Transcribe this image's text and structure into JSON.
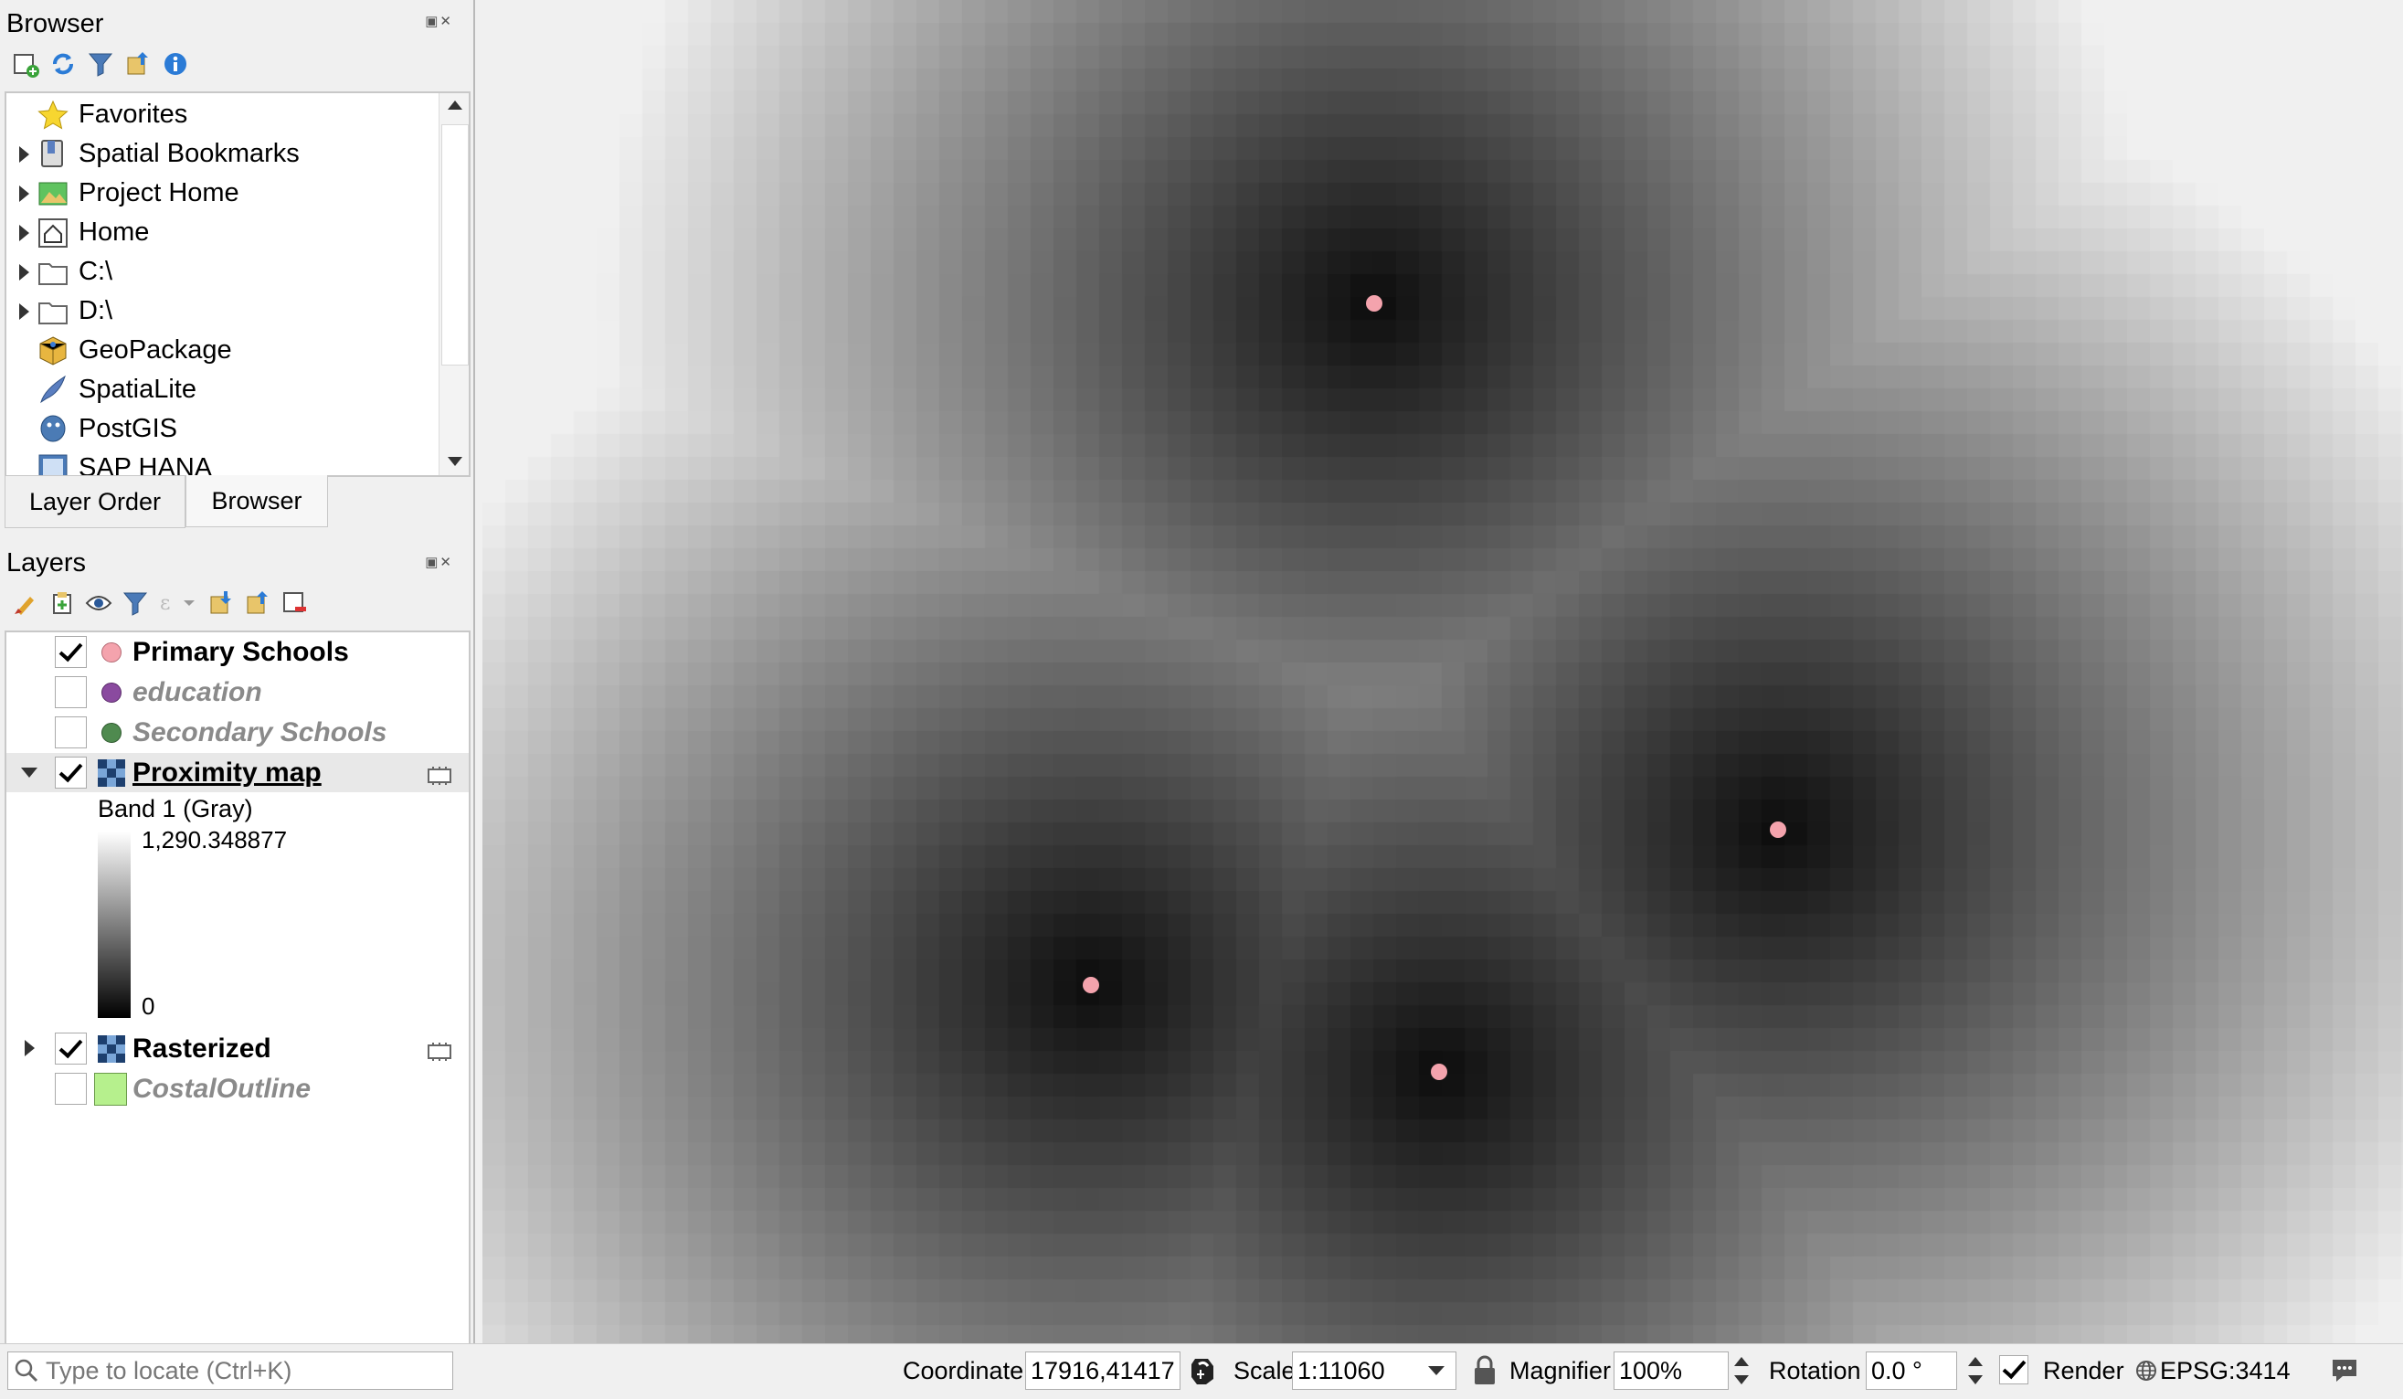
{
  "browser_panel": {
    "title": "Browser",
    "items": [
      {
        "label": "Favorites",
        "icon": "star-icon",
        "expandable": false
      },
      {
        "label": "Spatial Bookmarks",
        "icon": "bookmark-icon",
        "expandable": true
      },
      {
        "label": "Project Home",
        "icon": "project-home-icon",
        "expandable": true
      },
      {
        "label": "Home",
        "icon": "home-icon",
        "expandable": true
      },
      {
        "label": "C:\\",
        "icon": "folder-icon",
        "expandable": true
      },
      {
        "label": "D:\\",
        "icon": "folder-icon",
        "expandable": true
      },
      {
        "label": "GeoPackage",
        "icon": "geopackage-icon",
        "expandable": false
      },
      {
        "label": "SpatiaLite",
        "icon": "spatialite-icon",
        "expandable": false
      },
      {
        "label": "PostGIS",
        "icon": "postgis-icon",
        "expandable": false
      },
      {
        "label": "SAP HANA",
        "icon": "sap-hana-icon",
        "expandable": false
      }
    ]
  },
  "tabs": [
    {
      "label": "Layer Order",
      "active": false
    },
    {
      "label": "Browser",
      "active": true
    }
  ],
  "layers_panel": {
    "title": "Layers",
    "layers": [
      {
        "name": "Primary Schools",
        "checked": true,
        "visible_style": "bold",
        "symbol_color": "#f4a3ad",
        "type": "point"
      },
      {
        "name": "education",
        "checked": false,
        "visible_style": "italic-gray",
        "symbol_color": "#8a4a9f",
        "type": "point"
      },
      {
        "name": "Secondary Schools",
        "checked": false,
        "visible_style": "italic-gray",
        "symbol_color": "#4f8a4f",
        "type": "point"
      },
      {
        "name": "Proximity map",
        "checked": true,
        "visible_style": "bold-underline",
        "type": "raster",
        "expanded": true
      },
      {
        "name": "Rasterized",
        "checked": true,
        "visible_style": "bold",
        "type": "raster",
        "expanded": false
      },
      {
        "name": "CostalOutline",
        "checked": false,
        "visible_style": "italic-gray",
        "symbol_color": "#b6f08d",
        "type": "polygon"
      }
    ],
    "legend": {
      "band": "Band 1 (Gray)",
      "max": "1,290.348877",
      "min": "0"
    }
  },
  "status_bar": {
    "locate_placeholder": "Type to locate (Ctrl+K)",
    "coordinate_label": "Coordinate",
    "coordinate_value": "17916,41417",
    "scale_label": "Scale",
    "scale_value": "1:11060",
    "magnifier_label": "Magnifier",
    "magnifier_value": "100%",
    "rotation_label": "Rotation",
    "rotation_value": "0.0 °",
    "render_label": "Render",
    "render_checked": true,
    "crs": "EPSG:3414"
  }
}
